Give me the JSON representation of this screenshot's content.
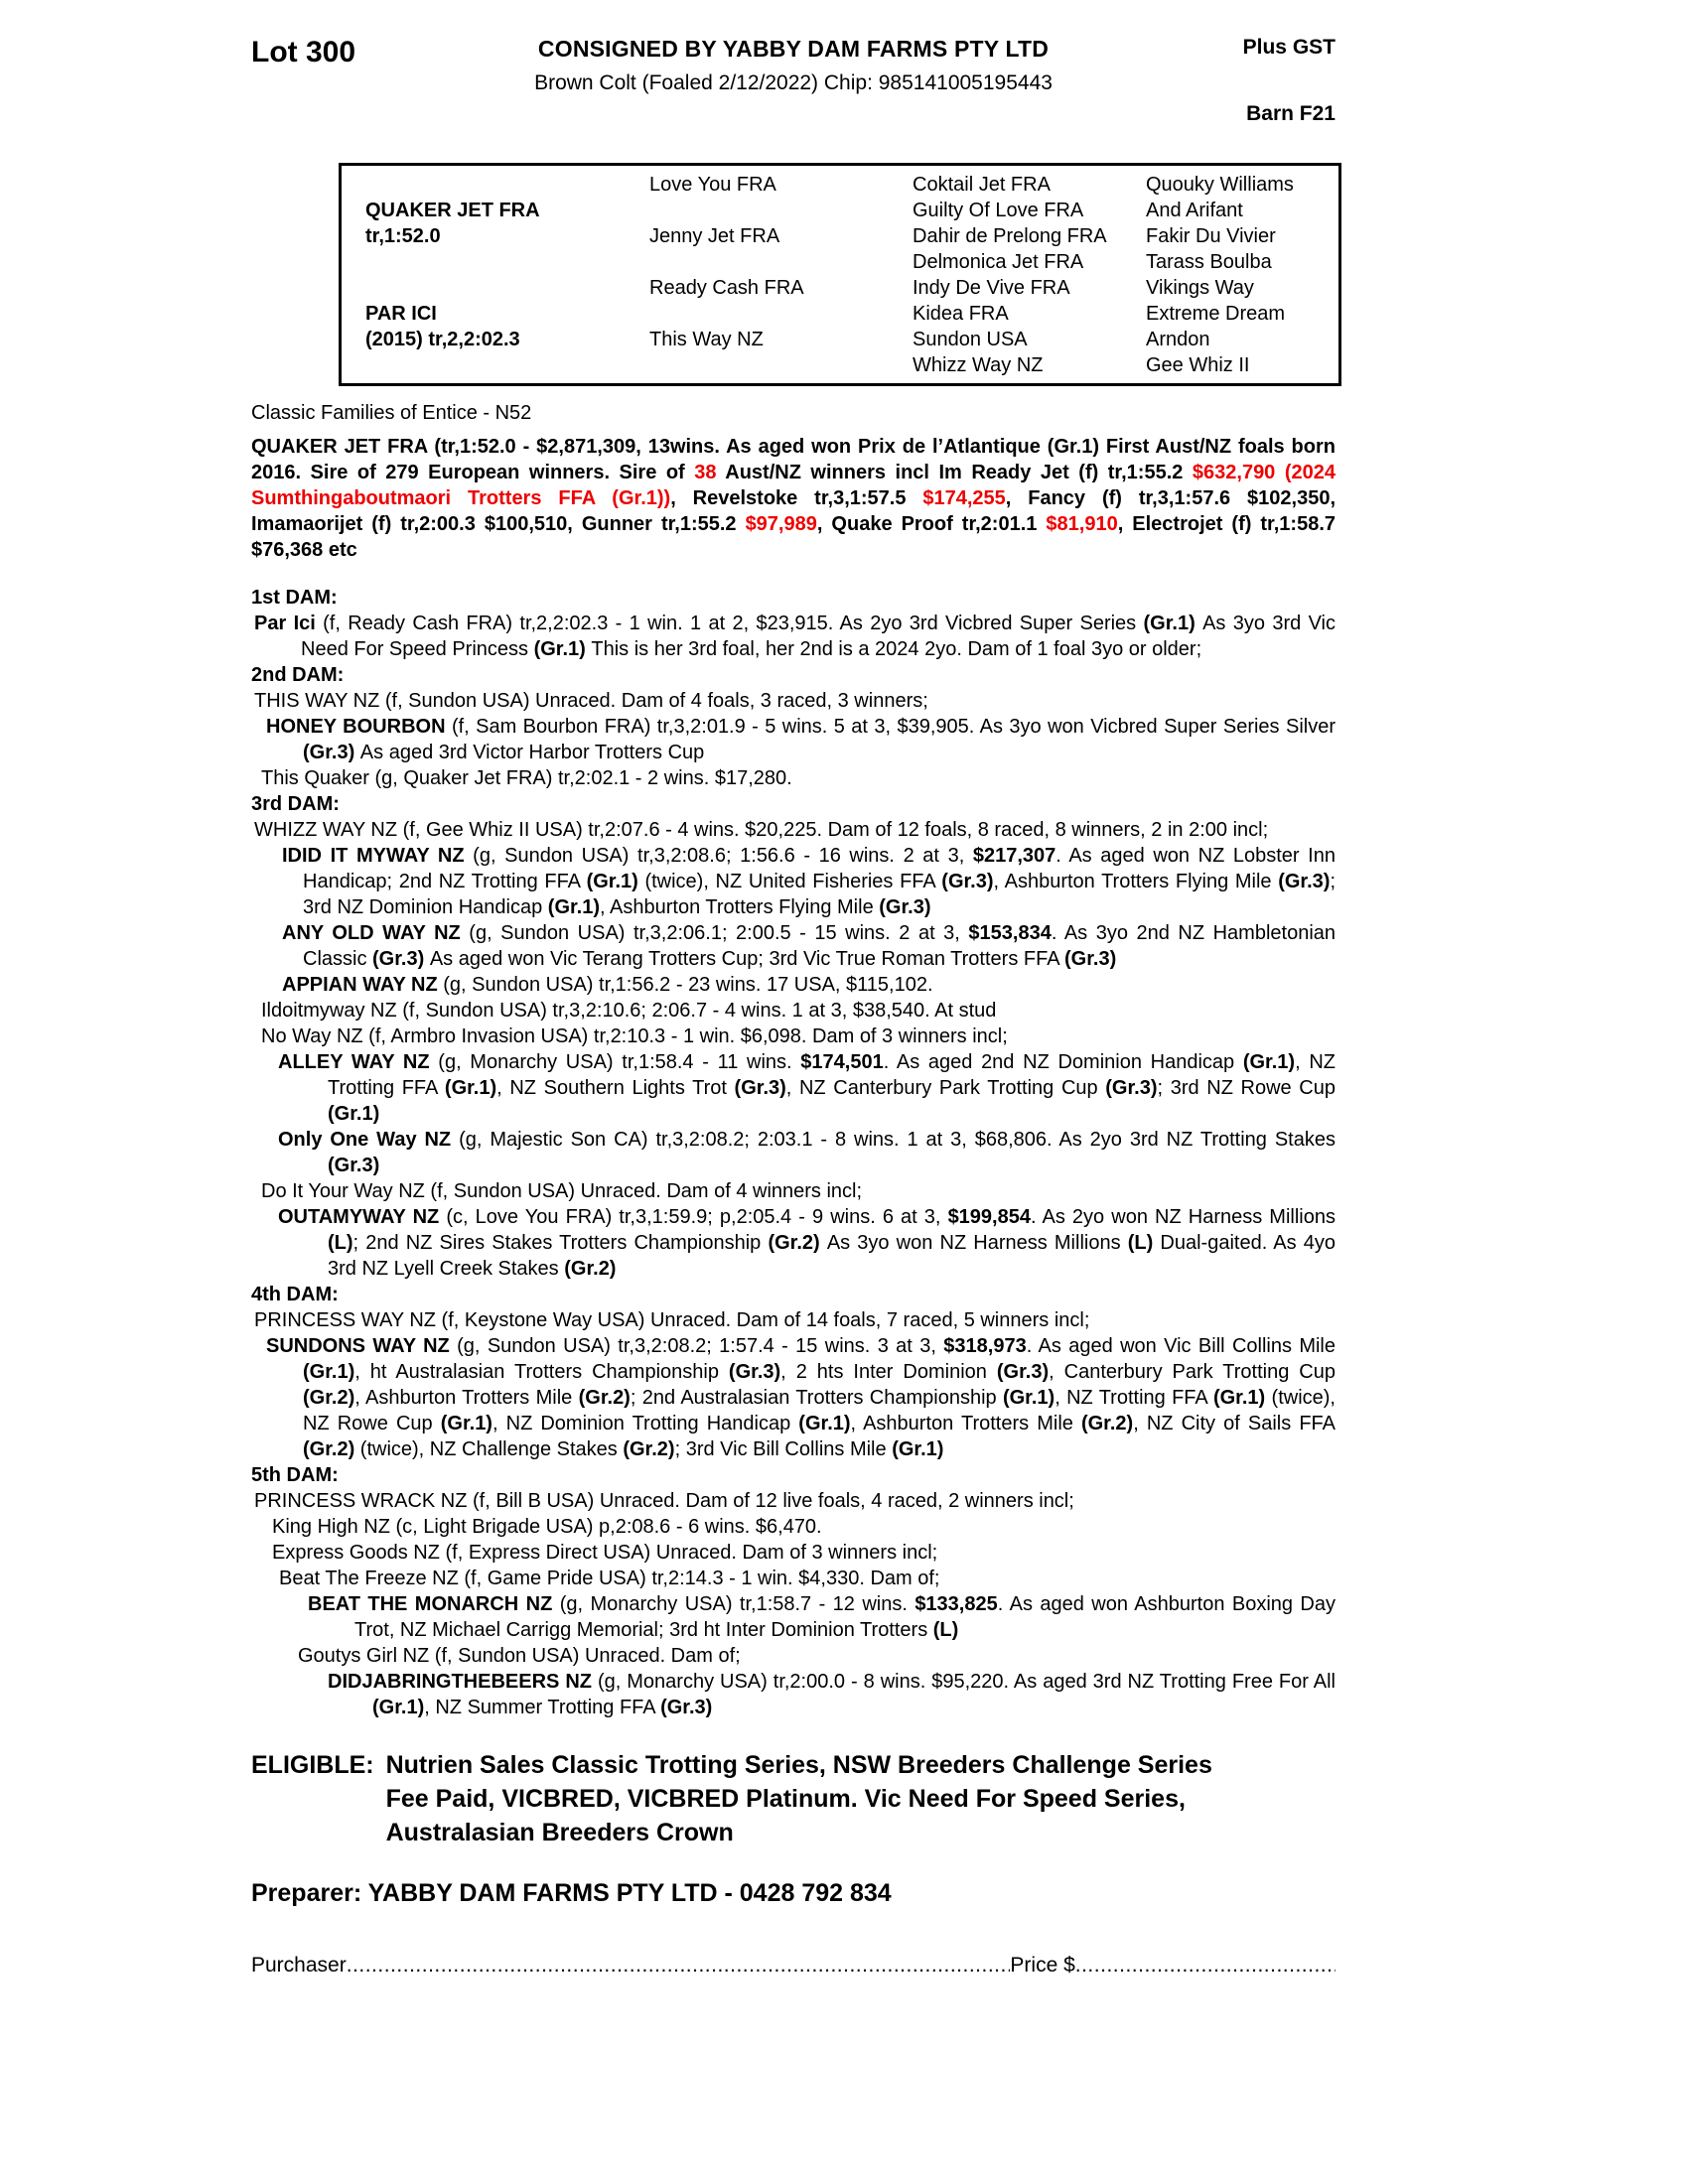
{
  "colors": {
    "accent_red": "#ee0000",
    "ink": "#000000",
    "paper": "#ffffff"
  },
  "header": {
    "lot": "Lot 300",
    "consignor": "CONSIGNED BY YABBY DAM FARMS PTY LTD",
    "plus_gst": "Plus GST",
    "description": "Brown Colt (Foaled  2/12/2022) Chip: 985141005195443",
    "barn": "Barn F21"
  },
  "pedigree_table": {
    "sire": {
      "name": "QUAKER JET FRA",
      "record": "tr,1:52.0"
    },
    "dam": {
      "name": "PAR ICI",
      "record": "(2015) tr,2,2:02.3"
    },
    "gen2": [
      "Love You FRA",
      "Jenny Jet FRA",
      "Ready Cash FRA",
      "This Way NZ"
    ],
    "gen3": [
      "Coktail Jet FRA",
      "Guilty Of Love FRA",
      "Dahir de Prelong FRA",
      "Delmonica Jet FRA",
      "Indy De Vive FRA",
      "Kidea FRA",
      "Sundon USA",
      "Whizz Way NZ"
    ],
    "gen4": [
      "Quouky Williams",
      "And Arifant",
      "Fakir Du Vivier",
      "Tarass Boulba",
      "Vikings Way",
      "Extreme Dream",
      "Arndon",
      "Gee Whiz II"
    ]
  },
  "family_note": "Classic Families of Entice - N52",
  "sire_paragraph": {
    "runs": [
      {
        "t": "QUAKER JET FRA (tr,1:52.0 - $2,871,309, 13wins. As aged won Prix ",
        "b": true
      },
      {
        "t": "de l’Atlantique "
      },
      {
        "t": "(Gr.1) First Aust/NZ foals born 2016. Sire of 279 European winners. Sire of ",
        "b": true
      },
      {
        "t": "38",
        "b": true,
        "r": true
      },
      {
        "t": " Aust/NZ winners incl Im Ready Jet (f) tr,1:55.2 ",
        "b": true
      },
      {
        "t": "$632,790 (2024 Sumthingaboutmaori Trotters FFA (Gr.1))",
        "b": true,
        "r": true
      },
      {
        "t": ", Revelstoke tr,3,1:57.5 ",
        "b": true
      },
      {
        "t": "$174,255",
        "b": true,
        "r": true
      },
      {
        "t": ", Fancy (f) tr,3,1:57.6 $102,350, Imamaorijet (f) tr,2:00.3 $100,510, Gunner tr,1:55.2 ",
        "b": true
      },
      {
        "t": "$97,989",
        "b": true,
        "r": true
      },
      {
        "t": ", Quake Proof tr,2:01.1 ",
        "b": true
      },
      {
        "t": "$81,910",
        "b": true,
        "r": true
      },
      {
        "t": ",  Electrojet (f) tr,1:58.7 $76,368 etc",
        "b": true
      }
    ]
  },
  "dams": [
    {
      "k": "h",
      "t": "1st DAM:"
    },
    {
      "k": "p",
      "ind": "i1",
      "runs": [
        {
          "t": "Par Ici ",
          "b": true
        },
        {
          "t": "(f, Ready Cash FRA) tr,2,2:02.3 - 1 win. 1 at 2, $23,915. As 2yo 3rd Vicbred Super Series "
        },
        {
          "t": "(Gr.1) ",
          "b": true
        },
        {
          "t": "As 3yo 3rd Vic Need For Speed Princess "
        },
        {
          "t": "(Gr.1) ",
          "b": true
        },
        {
          "t": "This is her 3rd foal, her 2nd is a 2024 2yo. Dam of 1 foal 3yo or older;"
        }
      ]
    },
    {
      "k": "h",
      "t": "2nd DAM:"
    },
    {
      "k": "p",
      "ind": "i1",
      "runs": [
        {
          "t": "THIS WAY NZ (f, Sundon USA) Unraced. Dam of 4 foals, 3 raced, 3 winners;"
        }
      ]
    },
    {
      "k": "p",
      "ind": "i3",
      "runs": [
        {
          "t": "HONEY BOURBON ",
          "b": true
        },
        {
          "t": "(f, Sam Bourbon FRA) tr,3,2:01.9 - 5 wins. 5 at 3, $39,905. As 3yo won Vicbred Super Series Silver "
        },
        {
          "t": "(Gr.3) ",
          "b": true
        },
        {
          "t": "As aged 3rd Victor Harbor Trotters Cup"
        }
      ]
    },
    {
      "k": "p",
      "ind": "i2",
      "runs": [
        {
          "t": "This Quaker (g, Quaker Jet FRA) tr,2:02.1 - 2 wins. $17,280."
        }
      ]
    },
    {
      "k": "h",
      "t": "3rd DAM:"
    },
    {
      "k": "p",
      "ind": "i1",
      "runs": [
        {
          "t": "WHIZZ WAY NZ (f, Gee Whiz II USA) tr,2:07.6 - 4 wins. $20,225. Dam of 12 foals, 8 raced, 8 winners, 2 in 2:00 incl;"
        }
      ]
    },
    {
      "k": "p",
      "ind": "i4",
      "runs": [
        {
          "t": "IDID IT MYWAY NZ ",
          "b": true
        },
        {
          "t": "(g, Sundon USA) tr,3,2:08.6; 1:56.6 - 16 wins. 2 at 3, "
        },
        {
          "t": "$217,307",
          "b": true
        },
        {
          "t": ". As aged won NZ Lobster Inn Handicap; 2nd NZ Trotting FFA "
        },
        {
          "t": "(Gr.1) ",
          "b": true
        },
        {
          "t": "(twice), NZ United Fisheries FFA "
        },
        {
          "t": "(Gr.3)",
          "b": true
        },
        {
          "t": ", Ashburton Trotters Flying Mile "
        },
        {
          "t": "(Gr.3)",
          "b": true
        },
        {
          "t": "; 3rd NZ Dominion Handicap "
        },
        {
          "t": "(Gr.1)",
          "b": true
        },
        {
          "t": ", Ashburton Trotters Flying Mile "
        },
        {
          "t": "(Gr.3)",
          "b": true
        }
      ]
    },
    {
      "k": "p",
      "ind": "i4",
      "runs": [
        {
          "t": "ANY OLD WAY NZ ",
          "b": true
        },
        {
          "t": "(g, Sundon USA) tr,3,2:06.1; 2:00.5 - 15 wins. 2 at 3, "
        },
        {
          "t": "$153,834",
          "b": true
        },
        {
          "t": ". As 3yo 2nd NZ Hambletonian Classic "
        },
        {
          "t": "(Gr.3) ",
          "b": true
        },
        {
          "t": "As aged won Vic Terang Trotters Cup; 3rd Vic True Roman Trotters FFA "
        },
        {
          "t": "(Gr.3)",
          "b": true
        }
      ]
    },
    {
      "k": "p",
      "ind": "i4",
      "runs": [
        {
          "t": "APPIAN WAY NZ ",
          "b": true
        },
        {
          "t": "(g, Sundon USA) tr,1:56.2 - 23 wins. 17 USA, $115,102."
        }
      ]
    },
    {
      "k": "p",
      "ind": "i2",
      "runs": [
        {
          "t": "Ildoitmyway NZ (f, Sundon USA) tr,3,2:10.6; 2:06.7 - 4 wins. 1 at 3, $38,540. At stud"
        }
      ]
    },
    {
      "k": "p",
      "ind": "i2",
      "runs": [
        {
          "t": "No Way NZ (f, Armbro Invasion USA) tr,2:10.3 - 1 win. $6,098. Dam of 3 winners incl;"
        }
      ]
    },
    {
      "k": "p",
      "ind": "i5",
      "runs": [
        {
          "t": "ALLEY WAY NZ ",
          "b": true
        },
        {
          "t": "(g, Monarchy USA) tr,1:58.4 - 11 wins. "
        },
        {
          "t": "$174,501",
          "b": true
        },
        {
          "t": ". As aged 2nd NZ Dominion Handicap "
        },
        {
          "t": "(Gr.1)",
          "b": true
        },
        {
          "t": ", NZ Trotting FFA "
        },
        {
          "t": "(Gr.1)",
          "b": true
        },
        {
          "t": ", NZ Southern Lights Trot "
        },
        {
          "t": "(Gr.3)",
          "b": true
        },
        {
          "t": ", NZ Canterbury Park Trotting Cup "
        },
        {
          "t": "(Gr.3)",
          "b": true
        },
        {
          "t": "; 3rd NZ Rowe Cup "
        },
        {
          "t": "(Gr.1)",
          "b": true
        }
      ]
    },
    {
      "k": "p",
      "ind": "i5",
      "runs": [
        {
          "t": "Only One Way NZ ",
          "b": true
        },
        {
          "t": "(g, Majestic Son CA) tr,3,2:08.2; 2:03.1 - 8 wins. 1 at 3, $68,806. As 2yo 3rd NZ Trotting Stakes "
        },
        {
          "t": "(Gr.3)",
          "b": true
        }
      ]
    },
    {
      "k": "p",
      "ind": "i2",
      "runs": [
        {
          "t": "Do It Your Way NZ (f, Sundon USA) Unraced. Dam of 4 winners incl;"
        }
      ]
    },
    {
      "k": "p",
      "ind": "i5",
      "runs": [
        {
          "t": "OUTAMYWAY NZ ",
          "b": true
        },
        {
          "t": "(c, Love You FRA) tr,3,1:59.9; p,2:05.4 - 9 wins. 6 at 3, "
        },
        {
          "t": "$199,854",
          "b": true
        },
        {
          "t": ". As 2yo won NZ Harness Millions "
        },
        {
          "t": "(L)",
          "b": true
        },
        {
          "t": "; 2nd NZ Sires Stakes Trotters Championship "
        },
        {
          "t": "(Gr.2) ",
          "b": true
        },
        {
          "t": "As 3yo won NZ Harness Millions "
        },
        {
          "t": "(L) ",
          "b": true
        },
        {
          "t": "Dual-gaited. As 4yo 3rd NZ Lyell Creek Stakes "
        },
        {
          "t": "(Gr.2)",
          "b": true
        }
      ]
    },
    {
      "k": "h",
      "t": "4th DAM:"
    },
    {
      "k": "p",
      "ind": "i1",
      "runs": [
        {
          "t": "PRINCESS WAY NZ (f, Keystone Way USA) Unraced. Dam of 14 foals, 7 raced, 5 winners incl;"
        }
      ]
    },
    {
      "k": "p",
      "ind": "i3",
      "runs": [
        {
          "t": "SUNDONS WAY NZ ",
          "b": true
        },
        {
          "t": "(g, Sundon USA) tr,3,2:08.2; 1:57.4 - 15 wins. 3 at 3, "
        },
        {
          "t": "$318,973",
          "b": true
        },
        {
          "t": ". As aged won Vic Bill Collins Mile "
        },
        {
          "t": "(Gr.1)",
          "b": true
        },
        {
          "t": ", ht Australasian Trotters Championship "
        },
        {
          "t": "(Gr.3)",
          "b": true
        },
        {
          "t": ", 2 hts Inter Dominion "
        },
        {
          "t": "(Gr.3)",
          "b": true
        },
        {
          "t": ", Canterbury Park Trotting Cup "
        },
        {
          "t": "(Gr.2)",
          "b": true
        },
        {
          "t": ", Ashburton Trotters Mile "
        },
        {
          "t": "(Gr.2)",
          "b": true
        },
        {
          "t": "; 2nd Australasian Trotters Championship "
        },
        {
          "t": "(Gr.1)",
          "b": true
        },
        {
          "t": ", NZ Trotting FFA "
        },
        {
          "t": "(Gr.1) ",
          "b": true
        },
        {
          "t": "(twice), NZ Rowe Cup "
        },
        {
          "t": "(Gr.1)",
          "b": true
        },
        {
          "t": ", NZ Dominion Trotting Handicap "
        },
        {
          "t": "(Gr.1)",
          "b": true
        },
        {
          "t": ", Ashburton Trotters Mile "
        },
        {
          "t": "(Gr.2)",
          "b": true
        },
        {
          "t": ", NZ City of Sails FFA "
        },
        {
          "t": "(Gr.2) ",
          "b": true
        },
        {
          "t": "(twice), NZ Challenge Stakes "
        },
        {
          "t": "(Gr.2)",
          "b": true
        },
        {
          "t": "; 3rd Vic Bill Collins Mile "
        },
        {
          "t": "(Gr.1)",
          "b": true
        }
      ]
    },
    {
      "k": "h",
      "t": "5th DAM:"
    },
    {
      "k": "p",
      "ind": "i1",
      "runs": [
        {
          "t": "PRINCESS WRACK NZ (f, Bill B USA) Unraced. Dam of 12 live foals, 4 raced, 2 winners incl;"
        }
      ]
    },
    {
      "k": "p",
      "ind": "i6",
      "runs": [
        {
          "t": "King High NZ (c, Light Brigade USA) p,2:08.6 - 6 wins. $6,470."
        }
      ]
    },
    {
      "k": "p",
      "ind": "i6",
      "runs": [
        {
          "t": "Express Goods NZ (f, Express Direct USA) Unraced. Dam of 3 winners incl;"
        }
      ]
    },
    {
      "k": "p",
      "ind": "i7",
      "runs": [
        {
          "t": "Beat The Freeze NZ (f, Game Pride USA) tr,2:14.3 - 1 win. $4,330. Dam of;"
        }
      ]
    },
    {
      "k": "p",
      "ind": "i8",
      "runs": [
        {
          "t": "BEAT THE MONARCH NZ ",
          "b": true
        },
        {
          "t": "(g, Monarchy USA) tr,1:58.7 - 12 wins. "
        },
        {
          "t": "$133,825",
          "b": true
        },
        {
          "t": ". As aged won Ashburton Boxing Day Trot, NZ Michael Carrigg Memorial; 3rd ht Inter Dominion Trotters "
        },
        {
          "t": "(L)",
          "b": true
        }
      ]
    },
    {
      "k": "p",
      "ind": "i9",
      "runs": [
        {
          "t": "Goutys Girl NZ (f, Sundon USA) Unraced. Dam of;"
        }
      ]
    },
    {
      "k": "p",
      "ind": "i10",
      "runs": [
        {
          "t": "DIDJABRINGTHEBEERS NZ ",
          "b": true
        },
        {
          "t": "(g, Monarchy USA) tr,2:00.0 - 8 wins. $95,220. As aged 3rd NZ Trotting Free For All "
        },
        {
          "t": "(Gr.1)",
          "b": true
        },
        {
          "t": ", NZ Summer Trotting FFA "
        },
        {
          "t": "(Gr.3)",
          "b": true
        }
      ]
    }
  ],
  "eligible": {
    "label": "ELIGIBLE:",
    "lines": [
      "Nutrien Sales Classic Trotting Series, NSW Breeders Challenge Series",
      "Fee Paid, VICBRED, VICBRED Platinum. Vic Need For Speed Series,",
      "Australasian Breeders Crown"
    ]
  },
  "preparer": "Preparer: YABBY DAM FARMS PTY LTD - 0428 792 834",
  "purchaser_label": "Purchaser",
  "price_label": "Price $"
}
